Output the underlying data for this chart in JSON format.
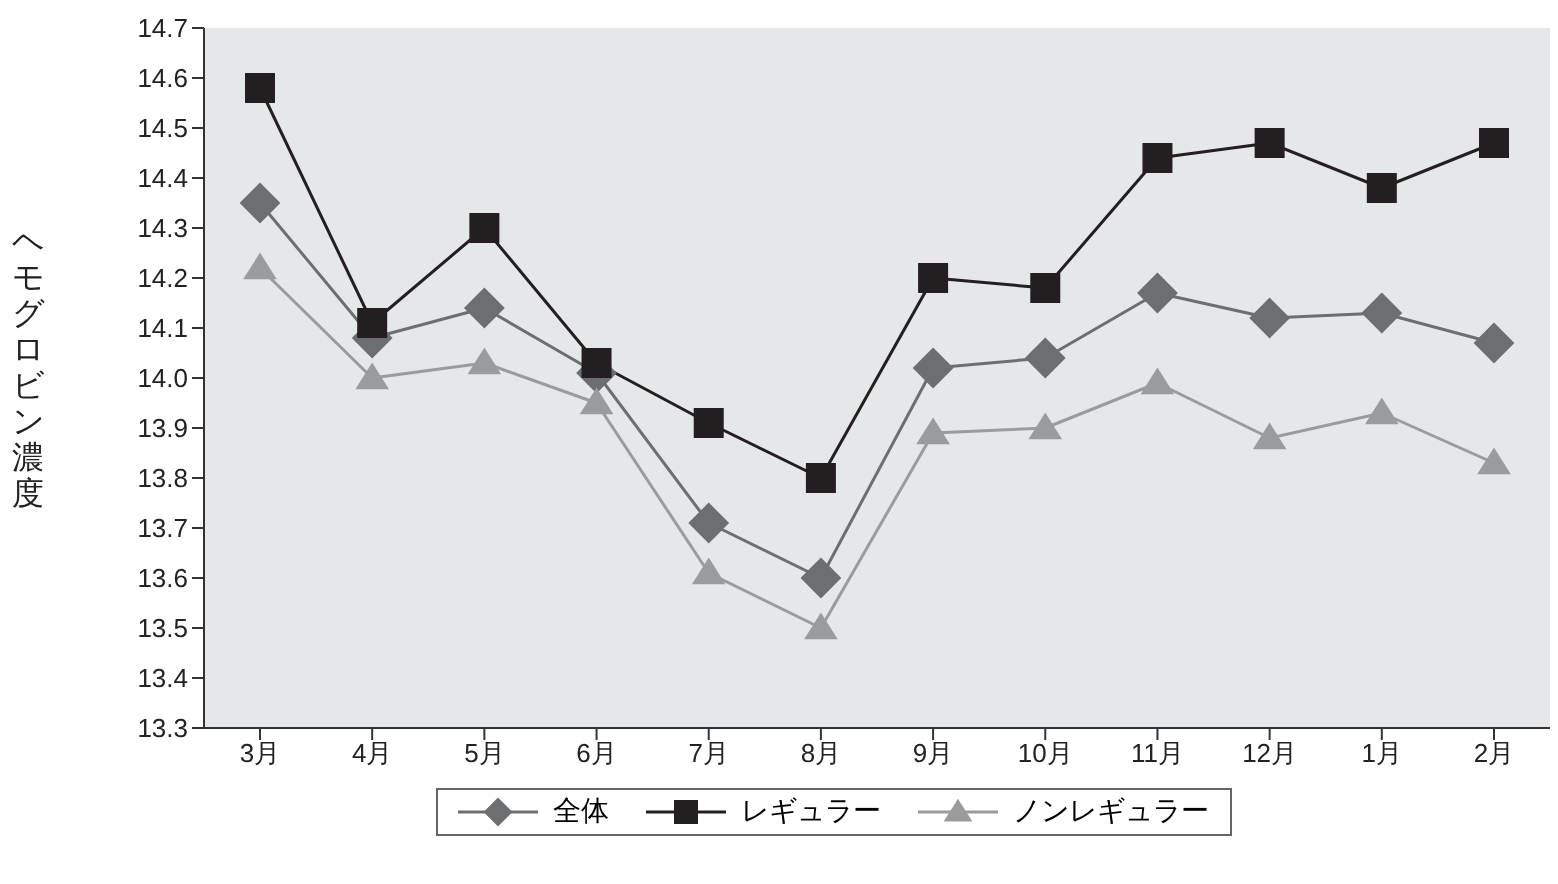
{
  "chart_data": {
    "type": "line",
    "ylabel": "ヘモグロビン濃度",
    "categories": [
      "3月",
      "4月",
      "5月",
      "6月",
      "7月",
      "8月",
      "9月",
      "10月",
      "11月",
      "12月",
      "1月",
      "2月"
    ],
    "series": [
      {
        "name": "全体",
        "color": "#6d6e70",
        "marker": "diamond",
        "values": [
          14.35,
          14.08,
          14.14,
          14.01,
          13.71,
          13.6,
          14.02,
          14.04,
          14.17,
          14.12,
          14.13,
          14.07
        ]
      },
      {
        "name": "レギュラー",
        "color": "#231f20",
        "marker": "square",
        "values": [
          14.58,
          14.11,
          14.3,
          14.03,
          13.91,
          13.8,
          14.2,
          14.18,
          14.44,
          14.47,
          14.38,
          14.47
        ]
      },
      {
        "name": "ノンレギュラー",
        "color": "#9a9b9d",
        "marker": "triangle",
        "values": [
          14.22,
          14.0,
          14.03,
          13.95,
          13.61,
          13.5,
          13.89,
          13.9,
          13.99,
          13.88,
          13.93,
          13.83
        ]
      }
    ],
    "ylim": [
      13.3,
      14.7
    ],
    "yticks": [
      13.3,
      13.4,
      13.5,
      13.6,
      13.7,
      13.8,
      13.9,
      {
        "value": 14.0,
        "label": "14.0"
      },
      14.1,
      14.2,
      14.3,
      14.4,
      14.5,
      14.6,
      14.7
    ],
    "grid": false,
    "legend": "bottom",
    "line_style": "solid"
  }
}
